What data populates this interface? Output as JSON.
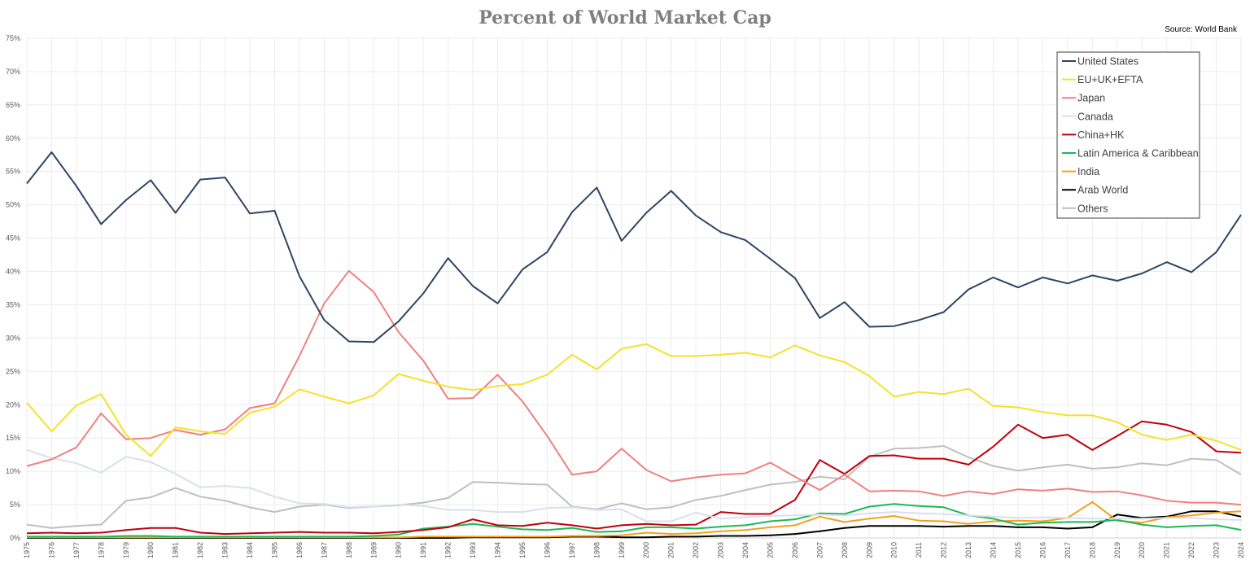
{
  "chart_data": {
    "type": "line",
    "title": "Percent of World Market Cap",
    "source": "Source: World Bank",
    "xlabel": "",
    "ylabel": "",
    "ylim": [
      0,
      75
    ],
    "y_ticks": [
      "0%",
      "5%",
      "10%",
      "15%",
      "20%",
      "25%",
      "30%",
      "35%",
      "40%",
      "45%",
      "50%",
      "55%",
      "60%",
      "65%",
      "70%",
      "75%"
    ],
    "x": [
      "1975",
      "1976",
      "1977",
      "1978",
      "1979",
      "1980",
      "1981",
      "1982",
      "1983",
      "1984",
      "1985",
      "1986",
      "1987",
      "1988",
      "1989",
      "1990",
      "1991",
      "1992",
      "1993",
      "1994",
      "1995",
      "1996",
      "1997",
      "1998",
      "1999",
      "2000",
      "2001",
      "2002",
      "2003",
      "2004",
      "2005",
      "2006",
      "2007",
      "2008",
      "2009",
      "2010",
      "2011",
      "2012",
      "2013",
      "2014",
      "2015",
      "2016",
      "2017",
      "2018",
      "2019",
      "2020",
      "2021",
      "2022",
      "2023",
      "2024"
    ],
    "grid": true,
    "legend_position": "top-right",
    "series": [
      {
        "name": "United States",
        "color": "#2e4566",
        "values": [
          53.2,
          57.9,
          52.8,
          47.1,
          50.7,
          53.7,
          48.8,
          53.8,
          54.1,
          48.7,
          49.1,
          39.3,
          32.7,
          29.5,
          29.4,
          32.5,
          36.7,
          42.0,
          37.8,
          35.2,
          40.3,
          42.9,
          48.9,
          52.6,
          44.6,
          48.8,
          52.1,
          48.4,
          45.9,
          44.7,
          41.9,
          39.0,
          33.0,
          35.4,
          31.7,
          31.8,
          32.7,
          33.9,
          37.3,
          39.1,
          37.6,
          39.1,
          38.2,
          39.4,
          38.6,
          39.7,
          41.4,
          39.9,
          42.9,
          48.5
        ]
      },
      {
        "name": "EU+UK+EFTA",
        "color": "#f5e12a",
        "values": [
          20.3,
          16.0,
          19.9,
          21.6,
          15.5,
          12.3,
          16.6,
          16.0,
          15.6,
          18.8,
          19.7,
          22.3,
          21.2,
          20.2,
          21.4,
          24.6,
          23.6,
          22.7,
          22.2,
          22.8,
          23.1,
          24.5,
          27.5,
          25.3,
          28.4,
          29.1,
          27.3,
          27.3,
          27.5,
          27.8,
          27.1,
          28.9,
          27.4,
          26.4,
          24.3,
          21.2,
          21.9,
          21.6,
          22.4,
          19.8,
          19.6,
          18.9,
          18.4,
          18.4,
          17.4,
          15.5,
          14.7,
          15.5,
          14.6,
          13.2
        ]
      },
      {
        "name": "Japan",
        "color": "#f08080",
        "values": [
          10.8,
          11.8,
          13.6,
          18.7,
          14.8,
          15.0,
          16.2,
          15.5,
          16.3,
          19.5,
          20.2,
          27.3,
          35.2,
          40.1,
          36.9,
          30.9,
          26.6,
          20.9,
          21.0,
          24.5,
          20.5,
          15.3,
          9.5,
          10.0,
          13.4,
          10.2,
          8.5,
          9.1,
          9.5,
          9.7,
          11.3,
          9.2,
          7.2,
          9.5,
          7.0,
          7.1,
          7.0,
          6.3,
          7.0,
          6.6,
          7.3,
          7.1,
          7.4,
          6.9,
          7.0,
          6.4,
          5.6,
          5.3,
          5.3,
          5.0
        ]
      },
      {
        "name": "Canada",
        "color": "#d9dfee",
        "values": [
          13.2,
          12.0,
          11.2,
          9.8,
          12.2,
          11.4,
          9.6,
          7.6,
          7.8,
          7.5,
          6.2,
          5.2,
          5.1,
          4.6,
          4.7,
          5.0,
          4.8,
          4.2,
          4.2,
          3.9,
          3.9,
          4.5,
          4.6,
          4.2,
          4.3,
          2.5,
          2.5,
          3.8,
          2.9,
          3.1,
          3.3,
          3.4,
          3.5,
          3.4,
          3.7,
          3.9,
          3.7,
          3.6,
          3.4,
          3.2,
          3.0,
          3.1,
          3.0,
          2.9,
          2.9,
          2.9,
          3.0,
          3.0,
          2.8,
          2.7
        ]
      },
      {
        "name": "China+HK",
        "color": "#c0000c",
        "values": [
          0.7,
          0.8,
          0.7,
          0.8,
          1.2,
          1.5,
          1.5,
          0.8,
          0.6,
          0.7,
          0.8,
          0.9,
          0.8,
          0.8,
          0.7,
          0.9,
          1.2,
          1.6,
          2.8,
          1.9,
          1.8,
          2.3,
          1.9,
          1.4,
          1.9,
          2.1,
          1.9,
          2.0,
          3.9,
          3.6,
          3.6,
          5.7,
          11.7,
          9.6,
          12.3,
          12.4,
          11.9,
          11.9,
          11.0,
          13.7,
          17.0,
          15.0,
          15.5,
          13.2,
          15.3,
          17.5,
          17.0,
          15.9,
          13.0,
          12.8
        ]
      },
      {
        "name": "Latin America & Caribbean",
        "color": "#1db954",
        "values": [
          0.2,
          0.2,
          0.2,
          0.2,
          0.3,
          0.3,
          0.2,
          0.2,
          0.2,
          0.2,
          0.2,
          0.2,
          0.2,
          0.2,
          0.3,
          0.5,
          1.4,
          1.7,
          2.1,
          1.7,
          1.3,
          1.2,
          1.5,
          0.9,
          1.0,
          1.6,
          1.6,
          1.4,
          1.7,
          1.9,
          2.5,
          2.8,
          3.7,
          3.6,
          4.7,
          5.1,
          4.8,
          4.6,
          3.4,
          2.9,
          2.0,
          2.3,
          2.4,
          2.4,
          2.7,
          2.0,
          1.6,
          1.8,
          1.9,
          1.2
        ]
      },
      {
        "name": "India",
        "color": "#f5a01a",
        "values": [
          0.1,
          0.1,
          0.1,
          0.1,
          0.1,
          0.1,
          0.1,
          0.1,
          0.1,
          0.1,
          0.1,
          0.1,
          0.1,
          0.1,
          0.1,
          0.1,
          0.2,
          0.2,
          0.2,
          0.2,
          0.2,
          0.2,
          0.3,
          0.3,
          0.4,
          0.8,
          0.6,
          0.7,
          1.0,
          1.2,
          1.6,
          1.9,
          3.2,
          2.4,
          2.9,
          3.3,
          2.6,
          2.5,
          2.1,
          2.5,
          2.6,
          2.5,
          3.0,
          5.4,
          2.6,
          2.3,
          3.1,
          3.4,
          3.8,
          4.0
        ]
      },
      {
        "name": "Arab World",
        "color": "#000000",
        "values": [
          0.0,
          0.0,
          0.0,
          0.0,
          0.0,
          0.0,
          0.0,
          0.0,
          0.0,
          0.0,
          0.0,
          0.0,
          0.0,
          0.0,
          0.0,
          0.0,
          0.0,
          0.0,
          0.1,
          0.1,
          0.1,
          0.1,
          0.2,
          0.2,
          0.1,
          0.1,
          0.2,
          0.2,
          0.3,
          0.3,
          0.4,
          0.6,
          1.0,
          1.5,
          1.8,
          1.8,
          1.8,
          1.7,
          1.8,
          1.8,
          1.6,
          1.6,
          1.4,
          1.6,
          3.5,
          3.0,
          3.2,
          4.0,
          4.0,
          3.2
        ]
      },
      {
        "name": "Others",
        "color": "#bfbfbf",
        "values": [
          2.0,
          1.5,
          1.8,
          2.0,
          5.6,
          6.1,
          7.5,
          6.2,
          5.6,
          4.6,
          3.9,
          4.7,
          5.0,
          4.5,
          4.7,
          4.9,
          5.3,
          6.0,
          8.4,
          8.3,
          8.1,
          8.0,
          4.7,
          4.3,
          5.2,
          4.3,
          4.6,
          5.7,
          6.3,
          7.2,
          8.0,
          8.4,
          9.2,
          8.8,
          12.2,
          13.4,
          13.5,
          13.8,
          12.1,
          10.8,
          10.1,
          10.6,
          11.0,
          10.4,
          10.6,
          11.2,
          10.9,
          11.9,
          11.7,
          9.5
        ]
      }
    ]
  }
}
